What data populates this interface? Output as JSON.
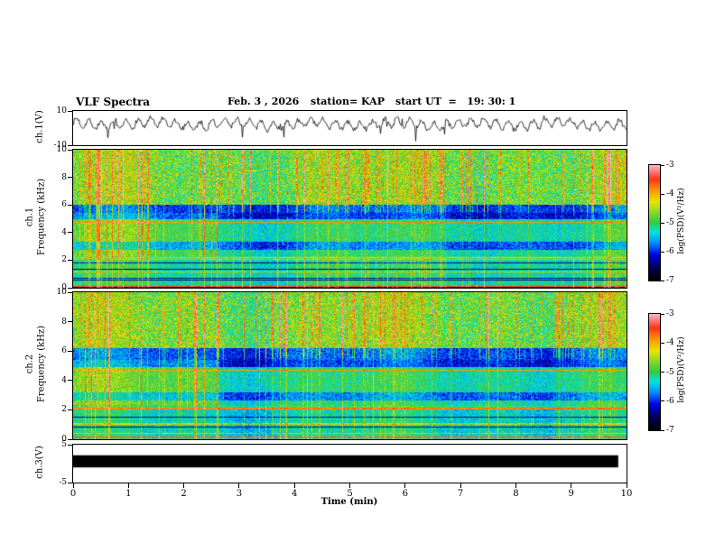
{
  "header": {
    "title": "VLF Spectra",
    "date": "Feb. 3 , 2026",
    "station": "station= KAP",
    "start_ut": "start UT  =   19: 30: 1"
  },
  "xaxis": {
    "label": "Time (min)",
    "ticks": [
      "0",
      "1",
      "2",
      "3",
      "4",
      "5",
      "6",
      "7",
      "8",
      "9",
      "10"
    ],
    "range": [
      0,
      10
    ]
  },
  "panels": {
    "waveform1": {
      "ylabel": "ch.1(V)",
      "yticks": [
        "10",
        "-10"
      ],
      "ylim": [
        -10,
        10
      ]
    },
    "spec1": {
      "channel": "ch.1",
      "ylabel": "Frequency (kHz)",
      "yticks": [
        "0",
        "2",
        "4",
        "6",
        "8",
        "10"
      ],
      "ylim": [
        0,
        10
      ]
    },
    "spec2": {
      "channel": "ch.2",
      "ylabel": "Frequency (kHz)",
      "yticks": [
        "0",
        "2",
        "4",
        "6",
        "8",
        "10"
      ],
      "ylim": [
        0,
        10
      ]
    },
    "waveform3": {
      "ylabel": "ch.3(V)",
      "yticks": [
        "5",
        "-5"
      ],
      "ylim": [
        -5,
        5
      ]
    }
  },
  "colorbar": {
    "label": "log(PSD)(V²/Hz)",
    "ticks": [
      "-3",
      "-4",
      "-5",
      "-6",
      "-7"
    ],
    "zlim": [
      -7,
      -3
    ],
    "stops": [
      {
        "t": 0.0,
        "c": "#000000"
      },
      {
        "t": 0.1,
        "c": "#00004d"
      },
      {
        "t": 0.22,
        "c": "#0000e6"
      },
      {
        "t": 0.33,
        "c": "#0096ff"
      },
      {
        "t": 0.42,
        "c": "#00e6dc"
      },
      {
        "t": 0.5,
        "c": "#2ecc40"
      },
      {
        "t": 0.58,
        "c": "#7dd62e"
      },
      {
        "t": 0.68,
        "c": "#e6e600"
      },
      {
        "t": 0.78,
        "c": "#ff9900"
      },
      {
        "t": 0.88,
        "c": "#ff3219"
      },
      {
        "t": 1.0,
        "c": "#ffb4c8"
      }
    ]
  },
  "chart_data": [
    {
      "type": "line",
      "name": "ch.1 waveform",
      "xlabel": "Time (min)",
      "xlim": [
        0,
        10
      ],
      "ylabel": "ch.1(V)",
      "ylim": [
        -10,
        10
      ],
      "color": "#000000",
      "description": "Noisy quasi-periodic waveform oscillating about +2.5 V, roughly 45 oscillation bumps across 10 min, excursions between about -8 V and +8 V",
      "gen": {
        "seed": 7,
        "mean": 2.3,
        "amp1": 2.4,
        "k1": 0.46,
        "amp2": 1.1,
        "k2": 0.07,
        "noise": 1.5
      }
    },
    {
      "type": "heatmap",
      "name": "ch.1 spectrogram",
      "xlabel": "Time (min)",
      "xlim": [
        0,
        10
      ],
      "ylabel": "Frequency (kHz)",
      "ylim": [
        0,
        10
      ],
      "zlabel": "log(PSD)(V²/Hz)",
      "zlim": [
        -7,
        -3
      ],
      "background_level": -5.0,
      "bands": [
        {
          "f0": 6.0,
          "f1": 10.0,
          "dv": 0.3,
          "extra_noise": 0.5
        },
        {
          "f0": 5.0,
          "f1": 6.0,
          "dv": -0.9
        },
        {
          "f0": 2.75,
          "f1": 3.3,
          "dv": -0.65
        },
        {
          "f0": 0.0,
          "f1": 2.1,
          "dv": -0.15,
          "striped": true
        }
      ],
      "lines": [
        {
          "f": 4.75,
          "v": -3.9,
          "hw": 0.05
        },
        {
          "f": 2.15,
          "v": -4.2,
          "hw": 0.04
        },
        {
          "f": 0.12,
          "v": -3.7,
          "hw": 0.06
        },
        {
          "f": 0.55,
          "v": -6.6,
          "hw": 0.04
        },
        {
          "f": 1.3,
          "v": -6.5,
          "hw": 0.04
        }
      ],
      "streak_density": 0.17,
      "regime_change_min": 2.6,
      "pixel_noise": 0.7,
      "seed": 101,
      "observed_features": [
        "mottled green/cyan background near -5",
        "dark blue quiet band ~5-6 kHz",
        "blue band ~2.8-3.3 kHz",
        "dense bright/dark horizontal interference lines below ~2 kHz",
        "orange lines near 4.75 kHz and near 0.1 kHz",
        "frequent vertical impulsive streaks (yellow/orange)",
        "spectral character change near t = 2.6 min"
      ]
    },
    {
      "type": "heatmap",
      "name": "ch.2 spectrogram",
      "xlabel": "Time (min)",
      "xlim": [
        0,
        10
      ],
      "ylabel": "Frequency (kHz)",
      "ylim": [
        0,
        10
      ],
      "zlabel": "log(PSD)(V²/Hz)",
      "zlim": [
        -7,
        -3
      ],
      "background_level": -5.0,
      "bands": [
        {
          "f0": 6.2,
          "f1": 10.0,
          "dv": 0.3,
          "extra_noise": 0.5
        },
        {
          "f0": 4.9,
          "f1": 6.2,
          "dv": -0.85
        },
        {
          "f0": 2.6,
          "f1": 3.2,
          "dv": -0.6
        },
        {
          "f0": 0.0,
          "f1": 2.1,
          "dv": -0.3,
          "striped": true
        }
      ],
      "lines": [
        {
          "f": 4.7,
          "v": -3.95,
          "hw": 0.05
        },
        {
          "f": 2.05,
          "v": -3.8,
          "hw": 0.05
        },
        {
          "f": 0.12,
          "v": -3.7,
          "hw": 0.06
        },
        {
          "f": 0.8,
          "v": -6.6,
          "hw": 0.04
        },
        {
          "f": 1.5,
          "v": -6.4,
          "hw": 0.04
        }
      ],
      "streak_density": 0.17,
      "regime_change_min": 2.6,
      "pixel_noise": 0.7,
      "seed": 202,
      "observed_features": [
        "same overall structure as ch.1",
        "dark blue quiet band ~5-6.2 kHz",
        "strong orange line near 2 kHz",
        "dense horizontal lines below ~2 kHz",
        "vertical impulsive streaks throughout",
        "spectral character change near t = 2.6 min"
      ]
    },
    {
      "type": "line",
      "name": "ch.3 waveform (saturated)",
      "xlabel": "Time (min)",
      "xlim": [
        0,
        10
      ],
      "ylabel": "ch.3(V)",
      "ylim": [
        -5,
        5
      ],
      "color": "#000000",
      "description": "Saturated/clipped channel rendered as a solid black bar from 0 to about 9.85 min spanning roughly +2 V to -1 V",
      "gen": {
        "bar_top_v": 2.2,
        "bar_bottom_v": -1.0,
        "x_end_frac": 0.985
      }
    }
  ]
}
